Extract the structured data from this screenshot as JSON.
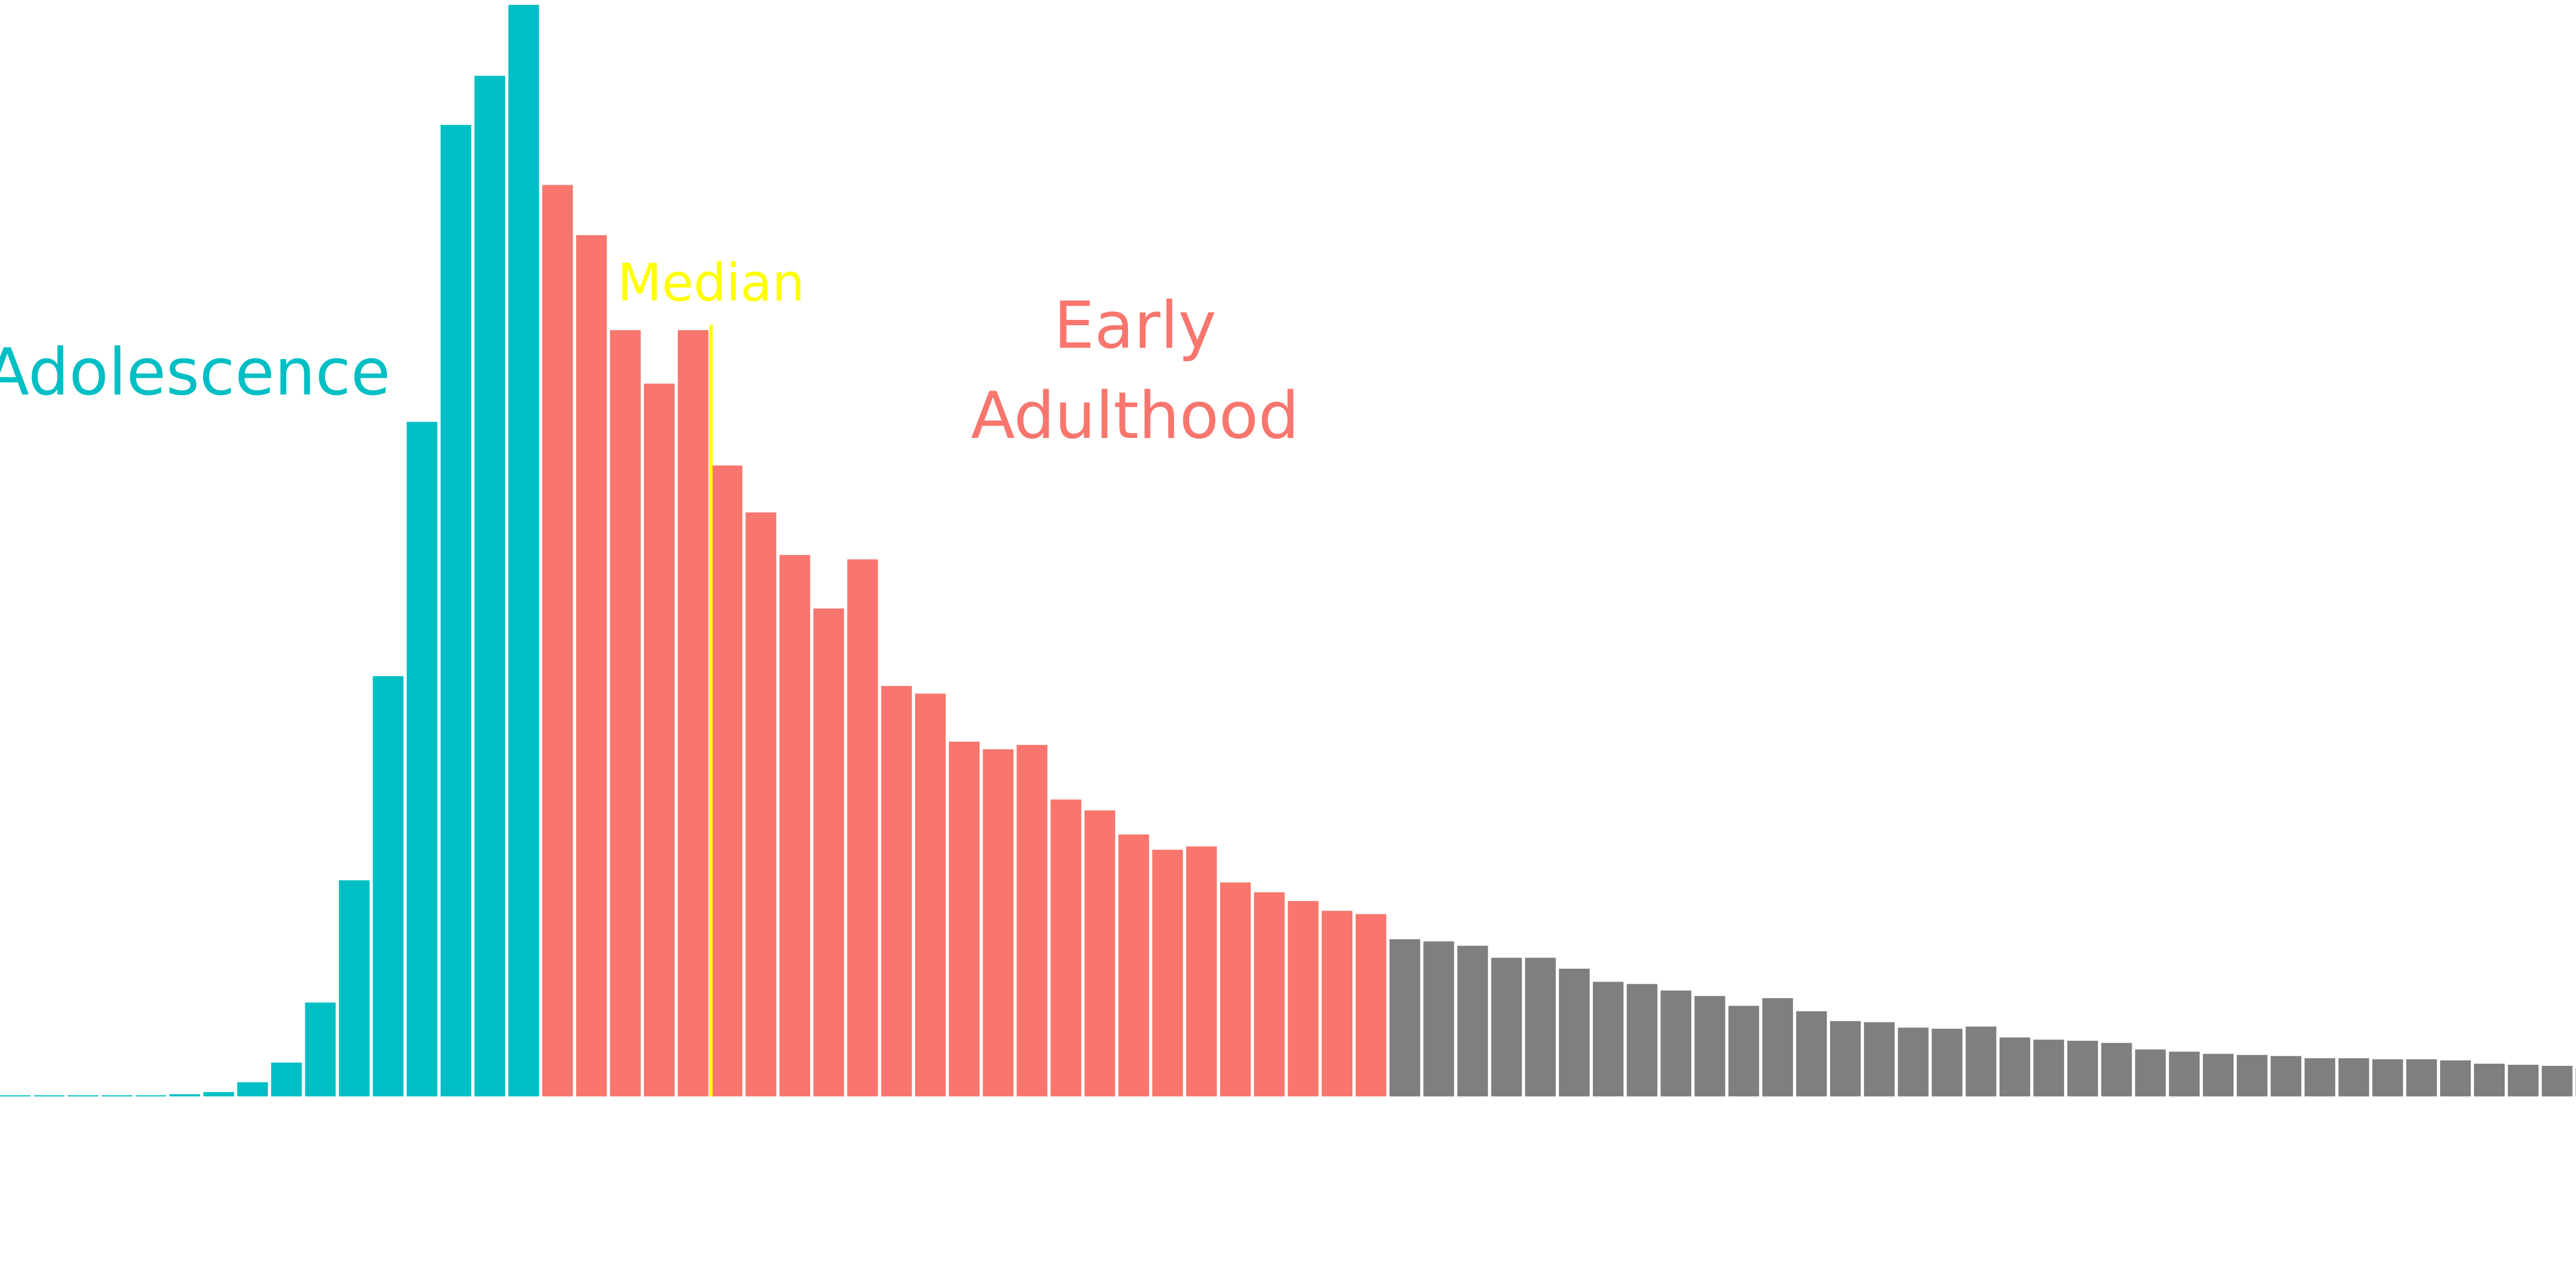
{
  "chart_data": {
    "type": "bar",
    "title": "",
    "xlabel": "",
    "ylabel": "",
    "axes_visible": false,
    "grid": false,
    "legend": "none",
    "ylim": [
      0,
      1000
    ],
    "values": [
      0.5,
      0.5,
      0.5,
      0.5,
      1,
      2,
      4,
      13,
      31,
      86,
      198,
      385,
      618,
      890,
      935,
      1000,
      835,
      789,
      702,
      653,
      702,
      578,
      535,
      496,
      447,
      492,
      376,
      369,
      325,
      318,
      322,
      272,
      262,
      240,
      226,
      229,
      196,
      187,
      179,
      170,
      167,
      144,
      142,
      138,
      127,
      127,
      117,
      105,
      103,
      97,
      92,
      83,
      90,
      78,
      69,
      68,
      63,
      62,
      64,
      54,
      52,
      51,
      49,
      43,
      41,
      39,
      38,
      37,
      35,
      35,
      34,
      34,
      33,
      30,
      29,
      28,
      26
    ],
    "segments": [
      {
        "label": "Adolescence",
        "start": 0,
        "end": 15,
        "color": "#00BFC4"
      },
      {
        "label": "Early\nAdulthood",
        "start": 16,
        "end": 40,
        "color": "#F8766D"
      },
      {
        "label": "",
        "start": 41,
        "end": 76,
        "color": "#7F7F7F"
      }
    ],
    "annotations": [
      {
        "text": "Median",
        "color": "#FFFF00",
        "position_bins": 20.98
      }
    ]
  }
}
